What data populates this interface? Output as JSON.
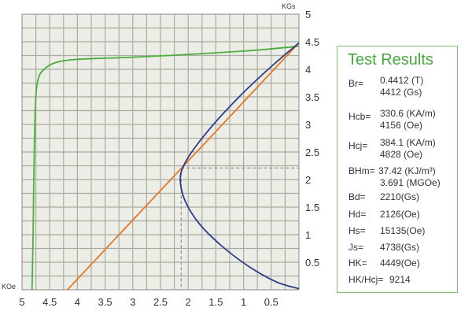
{
  "chart_data": {
    "type": "line",
    "x_unit": "KOe",
    "y_unit": "KGs",
    "xlim": [
      5,
      0
    ],
    "ylim": [
      0,
      5
    ],
    "x_ticks": [
      "5",
      "4.5",
      "4",
      "3.5",
      "3",
      "2.5",
      "2",
      "1.5",
      "1",
      "0.5"
    ],
    "y_ticks": [
      "0.5",
      "1",
      "1.5",
      "2",
      "2.5",
      "3",
      "3.5",
      "4",
      "4.5",
      "5"
    ],
    "grid": true,
    "series": [
      {
        "color": "#4caf3c",
        "points": [
          [
            4.82,
            0.0
          ],
          [
            4.8,
            1.0
          ],
          [
            4.78,
            2.5
          ],
          [
            4.75,
            3.5
          ],
          [
            4.7,
            3.85
          ],
          [
            4.6,
            4.0
          ],
          [
            4.4,
            4.12
          ],
          [
            4.0,
            4.18
          ],
          [
            3.0,
            4.22
          ],
          [
            2.0,
            4.27
          ],
          [
            1.0,
            4.33
          ],
          [
            0.3,
            4.39
          ],
          [
            0.0,
            4.42
          ]
        ]
      },
      {
        "color": "#e87722",
        "points": [
          [
            4.18,
            0.0
          ],
          [
            0.0,
            4.48
          ]
        ]
      },
      {
        "color": "#2e3a8c",
        "points": [
          [
            0.0,
            4.48
          ],
          [
            0.5,
            4.05
          ],
          [
            1.0,
            3.58
          ],
          [
            1.5,
            3.05
          ],
          [
            1.9,
            2.55
          ],
          [
            2.1,
            2.21
          ],
          [
            2.14,
            1.95
          ],
          [
            2.05,
            1.6
          ],
          [
            1.8,
            1.2
          ],
          [
            1.4,
            0.8
          ],
          [
            0.9,
            0.42
          ],
          [
            0.4,
            0.14
          ],
          [
            0.0,
            0.02
          ]
        ]
      }
    ],
    "markers": {
      "Hd": 2.126,
      "Bd": 2.21
    }
  },
  "panel": {
    "title": "Test Results",
    "br": {
      "label": "Br=",
      "v1": "0.4412 (T)",
      "v2": "4412 (Gs)"
    },
    "hcb": {
      "label": "Hcb=",
      "v1": "330.6 (KA/m)",
      "v2": "4156 (Oe)"
    },
    "hcj": {
      "label": "Hcj=",
      "v1": "384.1 (KA/m)",
      "v2": "4828 (Oe)"
    },
    "bhm": {
      "label": "BHm=",
      "v1": "37.42 (KJ/m³)",
      "v2": "3.691 (MGOe)"
    },
    "bd": {
      "label": "Bd=",
      "v1": "2210(Gs)"
    },
    "hd": {
      "label": "Hd=",
      "v1": "2126(Oe)"
    },
    "hs": {
      "label": "Hs=",
      "v1": "15135(Oe)"
    },
    "js": {
      "label": "Js=",
      "v1": "4738(Gs)"
    },
    "hk": {
      "label": "HK=",
      "v1": "4449(Oe)"
    },
    "hkhcj": {
      "label": "HK/Hcj=",
      "v1": "9214"
    }
  }
}
